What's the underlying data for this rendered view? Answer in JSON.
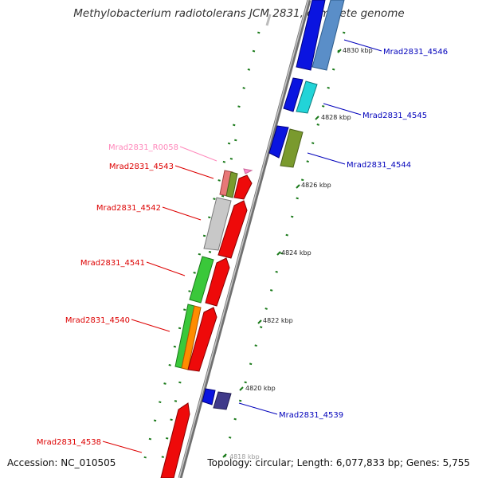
{
  "title": "Methylobacterium radiotolerans JCM 2831, complete genome",
  "accession": "Accession: NC_010505",
  "topology": "Topology: circular; Length: 6,077,833 bp; Genes: 5,755",
  "colors": {
    "backbone": "#888888",
    "forward_label": "#dd0000",
    "reverse_label": "#0000bb",
    "rna_label": "#ff88bb",
    "tick": "#1a7a1a"
  },
  "scale": {
    "ticks": [
      "4818 kbp",
      "4820 kbp",
      "4822 kbp",
      "4824 kbp",
      "4826 kbp",
      "4828 kbp",
      "4830 kbp"
    ]
  },
  "genes": [
    {
      "name": "Mrad2831_R0058",
      "strand": "forward",
      "type": "RNA"
    },
    {
      "name": "Mrad2831_4543",
      "strand": "forward"
    },
    {
      "name": "Mrad2831_4542",
      "strand": "forward"
    },
    {
      "name": "Mrad2831_4541",
      "strand": "forward"
    },
    {
      "name": "Mrad2831_4540",
      "strand": "forward"
    },
    {
      "name": "Mrad2831_4538",
      "strand": "forward"
    },
    {
      "name": "Mrad2831_4546",
      "strand": "reverse"
    },
    {
      "name": "Mrad2831_4545",
      "strand": "reverse"
    },
    {
      "name": "Mrad2831_4544",
      "strand": "reverse"
    },
    {
      "name": "Mrad2831_4539",
      "strand": "reverse"
    }
  ]
}
